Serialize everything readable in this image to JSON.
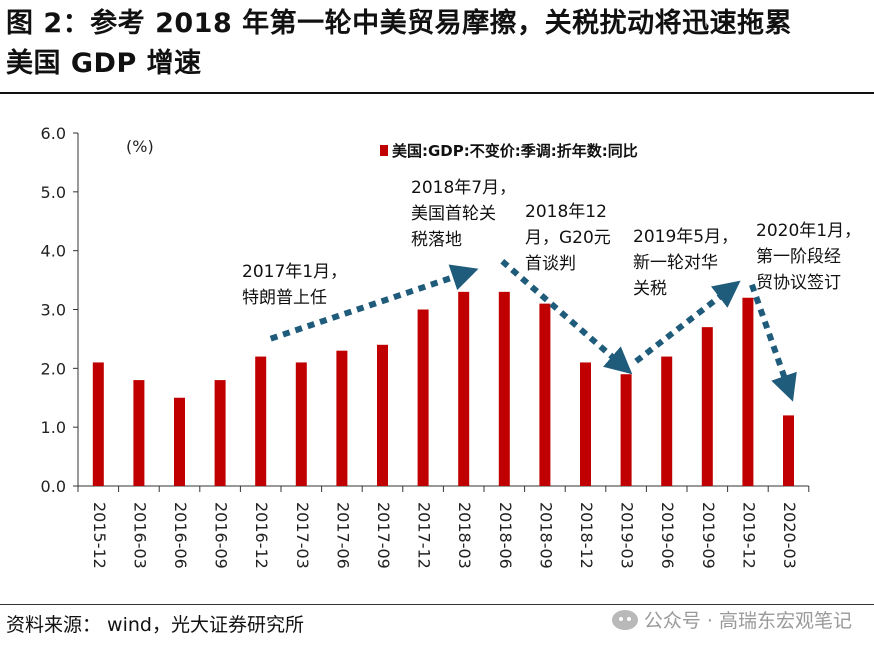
{
  "header": {
    "title_line1": "图 2：参考 2018 年第一轮中美贸易摩擦，关税扰动将迅速拖累",
    "title_line2": "美国 GDP 增速"
  },
  "footer": {
    "source": "资料来源： wind，光大证券研究所",
    "watermark": "公众号 · 高瑞东宏观笔记"
  },
  "colors": {
    "bar": "#C00000",
    "arrow": "#1F5B7A"
  },
  "chart_data": {
    "type": "bar",
    "unit_label": "(%)",
    "legend": "美国:GDP:不变价:季调:折年数:同比",
    "categories": [
      "2015-12",
      "2016-03",
      "2016-06",
      "2016-09",
      "2016-12",
      "2017-03",
      "2017-06",
      "2017-09",
      "2017-12",
      "2018-03",
      "2018-06",
      "2018-09",
      "2018-12",
      "2019-03",
      "2019-06",
      "2019-09",
      "2019-12",
      "2020-03"
    ],
    "values": [
      2.1,
      1.8,
      1.5,
      1.8,
      2.2,
      2.1,
      2.3,
      2.4,
      3.0,
      3.3,
      3.3,
      3.1,
      2.1,
      1.9,
      2.2,
      2.7,
      3.2,
      1.2
    ],
    "ylim": [
      0,
      6
    ],
    "yticks": [
      "0.0",
      "1.0",
      "2.0",
      "3.0",
      "4.0",
      "5.0",
      "6.0"
    ],
    "annotations": [
      {
        "lines": [
          "2017年1月，",
          "特朗普上任"
        ]
      },
      {
        "lines": [
          "2018年7月，",
          "美国首轮关",
          "税落地"
        ]
      },
      {
        "lines": [
          "2018年12",
          "月，G20元",
          "首谈判"
        ]
      },
      {
        "lines": [
          "2019年5月，",
          "新一轮对华",
          "关税"
        ]
      },
      {
        "lines": [
          "2020年1月，",
          "第一阶段经",
          "贸协议签订"
        ]
      }
    ]
  }
}
